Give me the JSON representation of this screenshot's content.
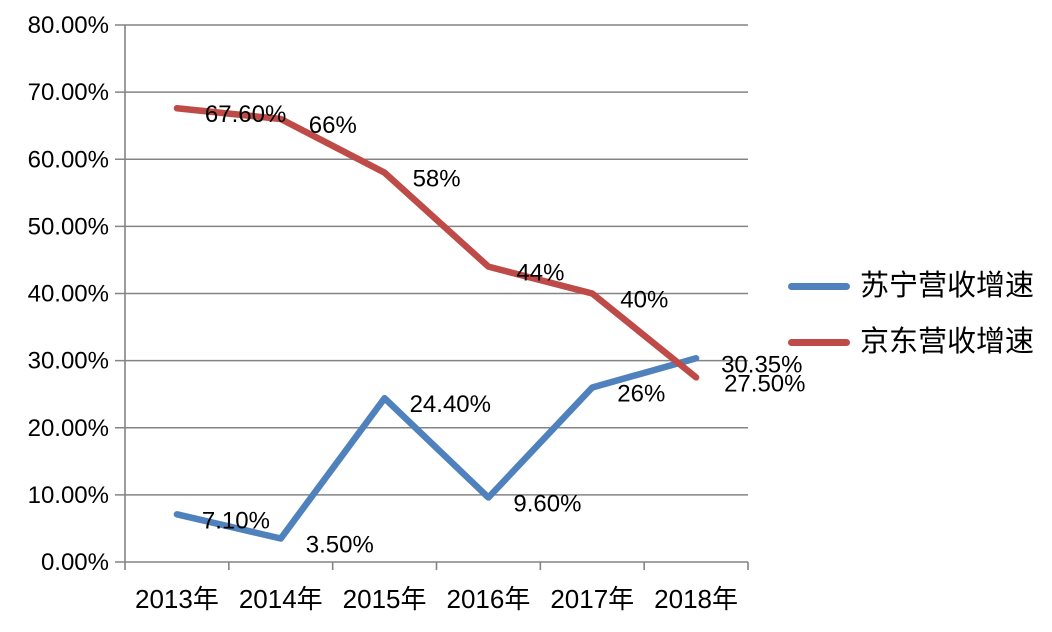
{
  "chart_data": {
    "type": "line",
    "title": "",
    "xlabel": "",
    "ylabel": "",
    "categories": [
      "2013年",
      "2014年",
      "2015年",
      "2016年",
      "2017年",
      "2018年"
    ],
    "series": [
      {
        "name": "苏宁营收增速",
        "color": "#4F81BD",
        "values": [
          7.1,
          3.5,
          24.4,
          9.6,
          26.0,
          30.35
        ],
        "labels": [
          "7.10%",
          "3.50%",
          "24.40%",
          "9.60%",
          "26%",
          "30.35%"
        ]
      },
      {
        "name": "京东营收增速",
        "color": "#BE4B48",
        "values": [
          67.6,
          66.0,
          58.0,
          44.0,
          40.0,
          27.5
        ],
        "labels": [
          "67.60%",
          "66%",
          "58%",
          "44%",
          "40%",
          "27.50%"
        ]
      }
    ],
    "y_ticks": [
      "0.00%",
      "10.00%",
      "20.00%",
      "30.00%",
      "40.00%",
      "50.00%",
      "60.00%",
      "70.00%",
      "80.00%"
    ],
    "ylim": [
      0,
      80
    ],
    "grid": true,
    "legend_position": "right"
  },
  "colors": {
    "grid": "#848484",
    "axis": "#848484",
    "label_text": "#000000",
    "background": "#FFFFFF"
  }
}
